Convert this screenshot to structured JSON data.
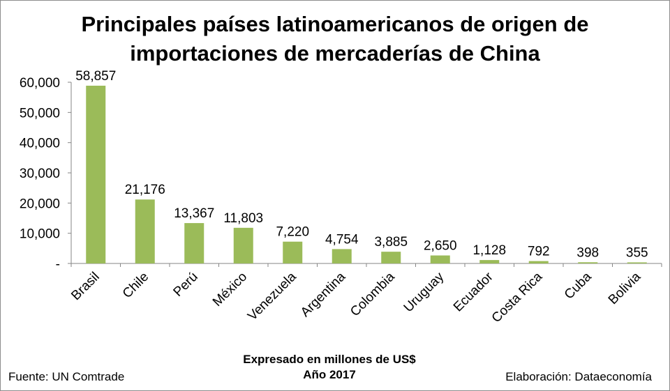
{
  "chart_data": {
    "type": "bar",
    "title_line1": "Principales países latinoamericanos de origen de",
    "title_line2": "importaciones de mercaderías de China",
    "xlabel_line1": "Expresado en millones de US$",
    "xlabel_line2": "Año 2017",
    "ylabel": "",
    "categories": [
      "Brasil",
      "Chile",
      "Perú",
      "México",
      "Venezuela",
      "Argentina",
      "Colombia",
      "Uruguay",
      "Ecuador",
      "Costa Rica",
      "Cuba",
      "Bolivia"
    ],
    "values": [
      58857,
      21176,
      13367,
      11803,
      7220,
      4754,
      3885,
      2650,
      1128,
      792,
      398,
      355
    ],
    "value_labels": [
      "58,857",
      "21,176",
      "13,367",
      "11,803",
      "7,220",
      "4,754",
      "3,885",
      "2,650",
      "1,128",
      "792",
      "398",
      "355"
    ],
    "yticks": [
      0,
      10000,
      20000,
      30000,
      40000,
      50000,
      60000
    ],
    "ytick_labels": [
      "-",
      "10,000",
      "20,000",
      "30,000",
      "40,000",
      "50,000",
      "60,000"
    ],
    "ylim": [
      0,
      60000
    ],
    "grid": false,
    "legend": "none",
    "bar_color": "#9bbb59"
  },
  "footer": {
    "source": "Fuente: UN Comtrade",
    "author": "Elaboración: Dataeconomía"
  }
}
